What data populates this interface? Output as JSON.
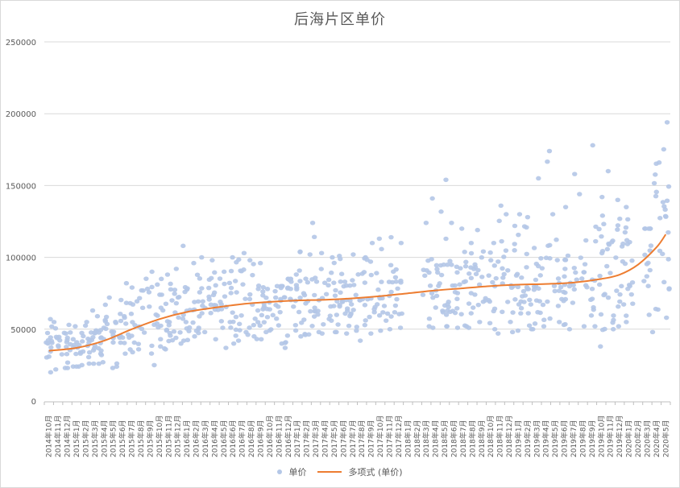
{
  "chart_data": {
    "type": "scatter",
    "title": "后海片区单价",
    "xlabel": "",
    "ylabel": "",
    "ylim": [
      0,
      250000
    ],
    "y_ticks": [
      0,
      50000,
      100000,
      150000,
      200000,
      250000
    ],
    "y_tick_labels": [
      "0",
      "50000",
      "100000",
      "150000",
      "200000",
      "250000"
    ],
    "grid": true,
    "legend_position": "bottom",
    "x_categories": [
      "2014年10月",
      "2014年11月",
      "2014年12月",
      "2015年1月",
      "2015年2月",
      "2015年3月",
      "2015年4月",
      "2015年5月",
      "2015年6月",
      "2015年7月",
      "2015年8月",
      "2015年9月",
      "2015年10月",
      "2015年11月",
      "2015年12月",
      "2016年1月",
      "2016年2月",
      "2016年3月",
      "2016年4月",
      "2016年5月",
      "2016年6月",
      "2016年7月",
      "2016年8月",
      "2016年9月",
      "2016年10月",
      "2016年11月",
      "2016年12月",
      "2017年1月",
      "2017年2月",
      "2017年3月",
      "2017年4月",
      "2017年5月",
      "2017年6月",
      "2017年7月",
      "2017年8月",
      "2017年9月",
      "2017年10月",
      "2017年11月",
      "2017年12月",
      "2018年1月",
      "2018年2月",
      "2018年3月",
      "2018年4月",
      "2018年5月",
      "2018年6月",
      "2018年7月",
      "2018年8月",
      "2018年9月",
      "2018年10月",
      "2018年11月",
      "2018年12月",
      "2019年1月",
      "2019年2月",
      "2019年3月",
      "2019年4月",
      "2019年5月",
      "2019年6月",
      "2019年7月",
      "2019年8月",
      "2019年9月",
      "2019年10月",
      "2019年11月",
      "2019年12月",
      "2020年1月",
      "2020年2月",
      "2020年3月",
      "2020年4月",
      "2020年5月"
    ],
    "series": [
      {
        "name": "单价",
        "kind": "scatter",
        "color": "#b4c7e7",
        "note": "approximate per-month value range (min, typical, max) read from scatter cloud",
        "monthly_ranges": [
          [
            20000,
            38000,
            57000
          ],
          [
            22000,
            38000,
            55000
          ],
          [
            23000,
            36000,
            53000
          ],
          [
            24000,
            37000,
            52000
          ],
          [
            25000,
            38000,
            55000
          ],
          [
            26000,
            42000,
            63000
          ],
          [
            27000,
            45000,
            67000
          ],
          [
            23000,
            47000,
            72000
          ],
          [
            33000,
            50000,
            82000
          ],
          [
            34000,
            53000,
            79000
          ],
          [
            36000,
            55000,
            77000
          ],
          [
            25000,
            55000,
            90000
          ],
          [
            38000,
            58000,
            85000
          ],
          [
            36000,
            60000,
            88000
          ],
          [
            40000,
            62000,
            92000
          ],
          [
            42000,
            64000,
            108000
          ],
          [
            45000,
            65000,
            96000
          ],
          [
            48000,
            66000,
            100000
          ],
          [
            43000,
            67000,
            98000
          ],
          [
            37000,
            67000,
            90000
          ],
          [
            40000,
            67000,
            100000
          ],
          [
            42000,
            68000,
            103000
          ],
          [
            45000,
            68000,
            98000
          ],
          [
            43000,
            68000,
            96000
          ],
          [
            48000,
            69000,
            78000
          ],
          [
            40000,
            69000,
            80000
          ],
          [
            37000,
            70000,
            85000
          ],
          [
            45000,
            70000,
            104000
          ],
          [
            46000,
            70000,
            102000
          ],
          [
            48000,
            70000,
            124000
          ],
          [
            47000,
            71000,
            103000
          ],
          [
            48000,
            71000,
            100000
          ],
          [
            47000,
            71000,
            101000
          ],
          [
            49000,
            71000,
            102000
          ],
          [
            42000,
            72000,
            100000
          ],
          [
            47000,
            72000,
            110000
          ],
          [
            49000,
            73000,
            113000
          ],
          [
            50000,
            74000,
            114000
          ],
          [
            51000,
            74000,
            110000
          ],
          [
            null,
            null,
            null
          ],
          [
            null,
            null,
            null
          ],
          [
            52000,
            76000,
            124000
          ],
          [
            51000,
            76000,
            141000
          ],
          [
            52000,
            77000,
            154000
          ],
          [
            51000,
            78000,
            124000
          ],
          [
            52000,
            78000,
            120000
          ],
          [
            51000,
            79000,
            110000
          ],
          [
            55000,
            79000,
            119000
          ],
          [
            50000,
            80000,
            110000
          ],
          [
            47000,
            80000,
            136000
          ],
          [
            48000,
            80000,
            130000
          ],
          [
            49000,
            81000,
            130000
          ],
          [
            50000,
            81000,
            128000
          ],
          [
            50000,
            81000,
            155000
          ],
          [
            52000,
            82000,
            174000
          ],
          [
            55000,
            82000,
            130000
          ],
          [
            53000,
            83000,
            135000
          ],
          [
            50000,
            83000,
            158000
          ],
          [
            52000,
            85000,
            144000
          ],
          [
            52000,
            86000,
            178000
          ],
          [
            38000,
            88000,
            142000
          ],
          [
            50000,
            90000,
            160000
          ],
          [
            52000,
            93000,
            140000
          ],
          [
            55000,
            97000,
            135000
          ],
          [
            null,
            null,
            null
          ],
          [
            60000,
            105000,
            120000
          ],
          [
            48000,
            112000,
            166000
          ],
          [
            58000,
            118000,
            194000
          ]
        ]
      },
      {
        "name": "多项式 (单价)",
        "kind": "polynomial-trendline",
        "color": "#ed7d31",
        "points_x_index": [
          0,
          3,
          6,
          9,
          12,
          15,
          18,
          21,
          24,
          27,
          30,
          33,
          36,
          39,
          42,
          45,
          48,
          51,
          54,
          57,
          60,
          62,
          64,
          66,
          67
        ],
        "points_y": [
          35000,
          37000,
          42000,
          50000,
          57000,
          62000,
          65000,
          67500,
          69000,
          70000,
          70500,
          71500,
          73000,
          75000,
          77000,
          78500,
          80000,
          81000,
          81500,
          82500,
          85000,
          88000,
          95000,
          107000,
          116000
        ]
      }
    ]
  },
  "legend": {
    "items": [
      {
        "label": "单价",
        "marker": "dot"
      },
      {
        "label": "多项式 (单价)",
        "marker": "line"
      }
    ]
  }
}
